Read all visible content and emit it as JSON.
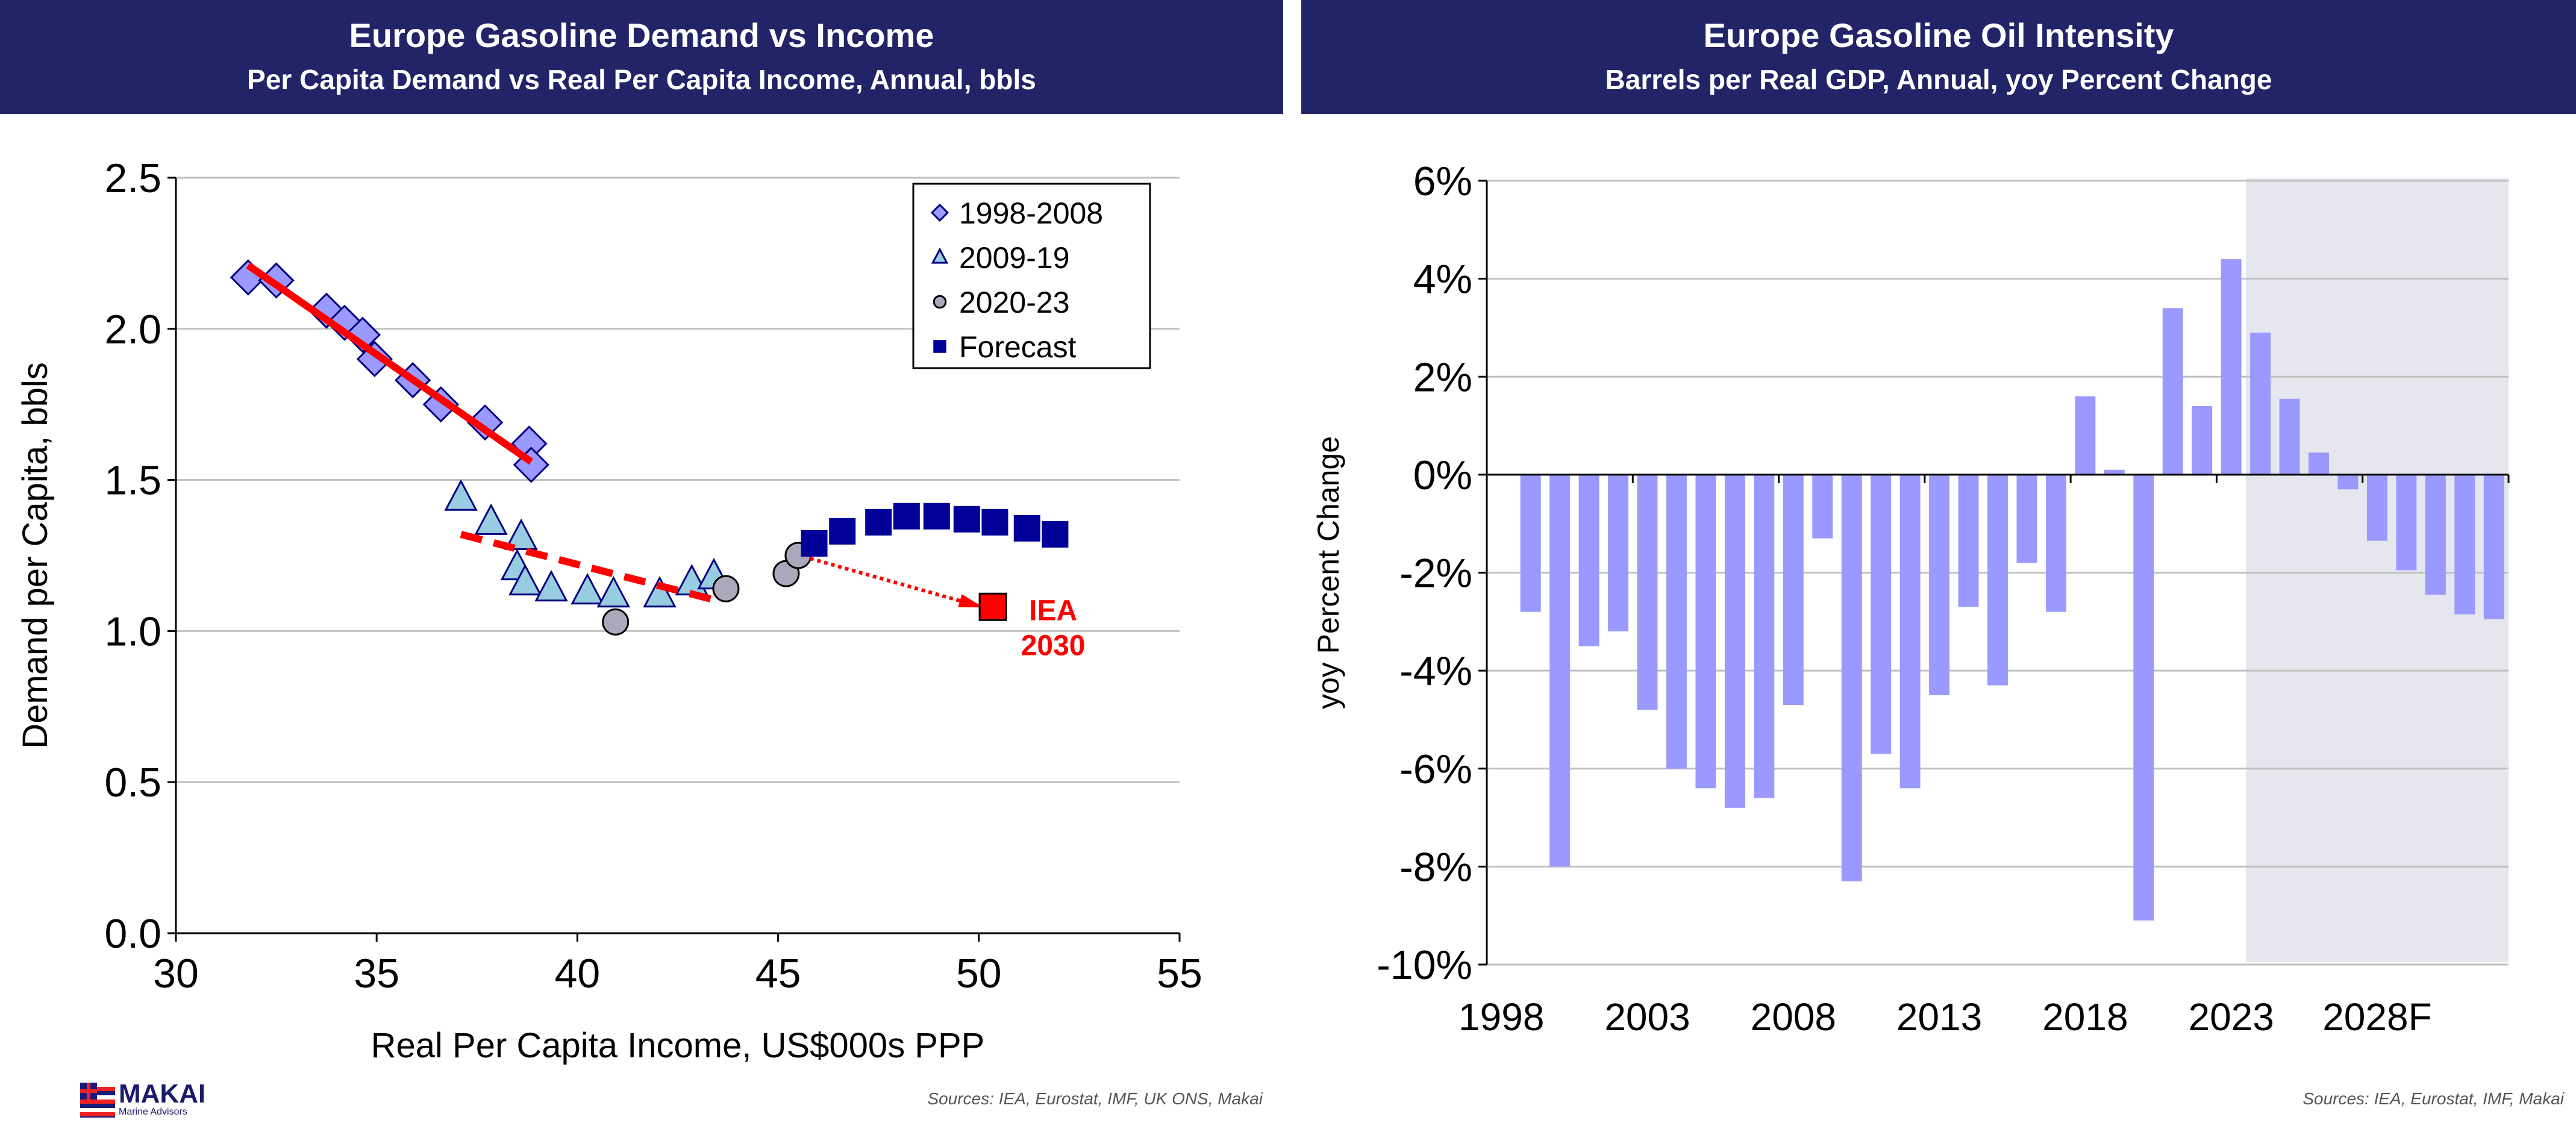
{
  "chart_data": [
    {
      "type": "scatter",
      "title": "Europe Gasoline Demand vs Income",
      "subtitle": "Per Capita Demand vs Real Per Capita Income, Annual, bbls",
      "xlabel": "Real Per Capita Income, US$000s PPP",
      "ylabel": "Demand per Capita, bbls",
      "xlim": [
        30,
        55
      ],
      "ylim": [
        0,
        2.5
      ],
      "xticks": [
        "30",
        "35",
        "40",
        "45",
        "50",
        "55"
      ],
      "yticks": [
        "0.0",
        "0.5",
        "1.0",
        "1.5",
        "2.0",
        "2.5"
      ],
      "grid": true,
      "legend_position": "top-right",
      "series": [
        {
          "name": "1998-2008",
          "marker": "diamond",
          "color": "#9999ff",
          "points": [
            [
              31.8,
              2.17
            ],
            [
              32.5,
              2.16
            ],
            [
              33.75,
              2.06
            ],
            [
              34.2,
              2.02
            ],
            [
              34.65,
              1.98
            ],
            [
              34.95,
              1.9
            ],
            [
              35.9,
              1.83
            ],
            [
              36.6,
              1.75
            ],
            [
              37.7,
              1.69
            ],
            [
              38.8,
              1.62
            ],
            [
              38.85,
              1.55
            ]
          ]
        },
        {
          "name": "2009-19",
          "marker": "triangle",
          "color": "#99cce0",
          "points": [
            [
              37.1,
              1.44
            ],
            [
              37.85,
              1.36
            ],
            [
              38.6,
              1.31
            ],
            [
              38.5,
              1.21
            ],
            [
              38.7,
              1.16
            ],
            [
              39.35,
              1.14
            ],
            [
              40.25,
              1.13
            ],
            [
              40.9,
              1.12
            ],
            [
              42.05,
              1.12
            ],
            [
              42.85,
              1.16
            ],
            [
              43.4,
              1.18
            ]
          ]
        },
        {
          "name": "2020-23",
          "marker": "circle",
          "color": "#a9a9bb",
          "points": [
            [
              40.95,
              1.03
            ],
            [
              43.7,
              1.14
            ],
            [
              45.2,
              1.19
            ],
            [
              45.5,
              1.25
            ]
          ]
        },
        {
          "name": "Forecast",
          "marker": "square",
          "color": "#000099",
          "points": [
            [
              45.9,
              1.29
            ],
            [
              46.6,
              1.33
            ],
            [
              47.5,
              1.36
            ],
            [
              48.2,
              1.38
            ],
            [
              48.95,
              1.38
            ],
            [
              49.7,
              1.37
            ],
            [
              50.4,
              1.36
            ],
            [
              51.2,
              1.34
            ],
            [
              51.9,
              1.32
            ]
          ]
        }
      ],
      "iea_point": {
        "label_line1": "IEA",
        "label_line2": "2030",
        "x": 50.35,
        "y": 1.08,
        "color": "#ff0000"
      },
      "trendlines": [
        {
          "style": "solid",
          "from": [
            31.8,
            2.21
          ],
          "to": [
            38.85,
            1.56
          ]
        },
        {
          "style": "dashed",
          "from": [
            37.1,
            1.32
          ],
          "to": [
            43.5,
            1.1
          ]
        },
        {
          "style": "dotted-arrow",
          "from": [
            45.8,
            1.24
          ],
          "to": [
            49.8,
            1.09
          ]
        }
      ],
      "source": "Sources: IEA, Eurostat, IMF, UK ONS, Makai"
    },
    {
      "type": "bar",
      "title": "Europe Gasoline Oil Intensity",
      "subtitle": "Barrels per Real GDP, Annual, yoy Percent Change",
      "ylabel": "yoy Percent Change",
      "ylim": [
        -10,
        6
      ],
      "yticks": [
        "-10%",
        "-8%",
        "-6%",
        "-4%",
        "-2%",
        "0%",
        "2%",
        "4%",
        "6%"
      ],
      "grid": true,
      "color": "#9999ff",
      "forecast_shade_from": "2024",
      "categories": [
        "1998",
        "1999",
        "2000",
        "2001",
        "2002",
        "2003",
        "2004",
        "2005",
        "2006",
        "2007",
        "2008",
        "2009",
        "2010",
        "2011",
        "2012",
        "2013",
        "2014",
        "2015",
        "2016",
        "2017",
        "2018",
        "2019",
        "2020",
        "2021",
        "2022",
        "2023",
        "2024",
        "2025",
        "2026",
        "2027",
        "2028",
        "2029",
        "2030",
        "2031",
        "2032"
      ],
      "xtick_labels": [
        "1998",
        "2003",
        "2008",
        "2013",
        "2018",
        "2023",
        "2028F"
      ],
      "values": [
        null,
        -2.8,
        -8.0,
        -3.5,
        -3.2,
        -4.8,
        -6.0,
        -6.4,
        -6.8,
        -6.6,
        -4.7,
        -1.3,
        -8.3,
        -5.7,
        -6.4,
        -4.5,
        -2.7,
        -4.3,
        -1.8,
        -2.8,
        1.6,
        0.1,
        -9.1,
        3.4,
        1.4,
        4.4,
        2.9,
        1.55,
        0.45,
        -0.3,
        -1.35,
        -1.95,
        -2.45,
        -2.85,
        -2.95
      ],
      "source": "Sources: IEA, Eurostat, IMF, Makai"
    }
  ],
  "logo": {
    "name": "MAKAI",
    "sub": "Marine Advisors"
  }
}
